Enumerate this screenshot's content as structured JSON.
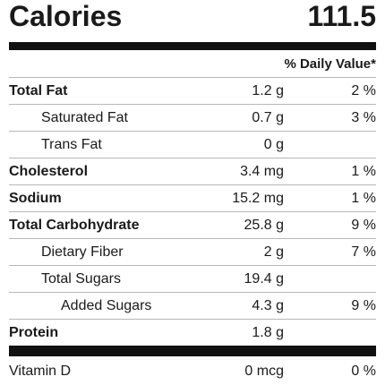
{
  "calories": {
    "label": "Calories",
    "value": "111.5"
  },
  "daily_value_header": "% Daily Value*",
  "nutrients": [
    {
      "name": "Total Fat",
      "amount": "1.2 g",
      "dv": "2 %",
      "style": "bold"
    },
    {
      "name": "Saturated Fat",
      "amount": "0.7 g",
      "dv": "3 %",
      "style": "indent-1"
    },
    {
      "name": "Trans Fat",
      "amount": "0 g",
      "dv": "",
      "style": "indent-1"
    },
    {
      "name": "Cholesterol",
      "amount": "3.4 mg",
      "dv": "1 %",
      "style": "bold"
    },
    {
      "name": "Sodium",
      "amount": "15.2 mg",
      "dv": "1 %",
      "style": "bold"
    },
    {
      "name": "Total Carbohydrate",
      "amount": "25.8 g",
      "dv": "9 %",
      "style": "bold"
    },
    {
      "name": "Dietary Fiber",
      "amount": "2 g",
      "dv": "7 %",
      "style": "indent-1"
    },
    {
      "name": "Total Sugars",
      "amount": "19.4 g",
      "dv": "",
      "style": "indent-1"
    },
    {
      "name": "Added Sugars",
      "amount": "4.3 g",
      "dv": "9 %",
      "style": "indent-2"
    },
    {
      "name": "Protein",
      "amount": "1.8 g",
      "dv": "",
      "style": "bold"
    }
  ],
  "vitamins": [
    {
      "name": "Vitamin D",
      "amount": "0 mcg",
      "dv": "0 %"
    }
  ],
  "colors": {
    "text": "#1a1a1a",
    "rule": "#b7b7b7",
    "bar": "#111111"
  }
}
